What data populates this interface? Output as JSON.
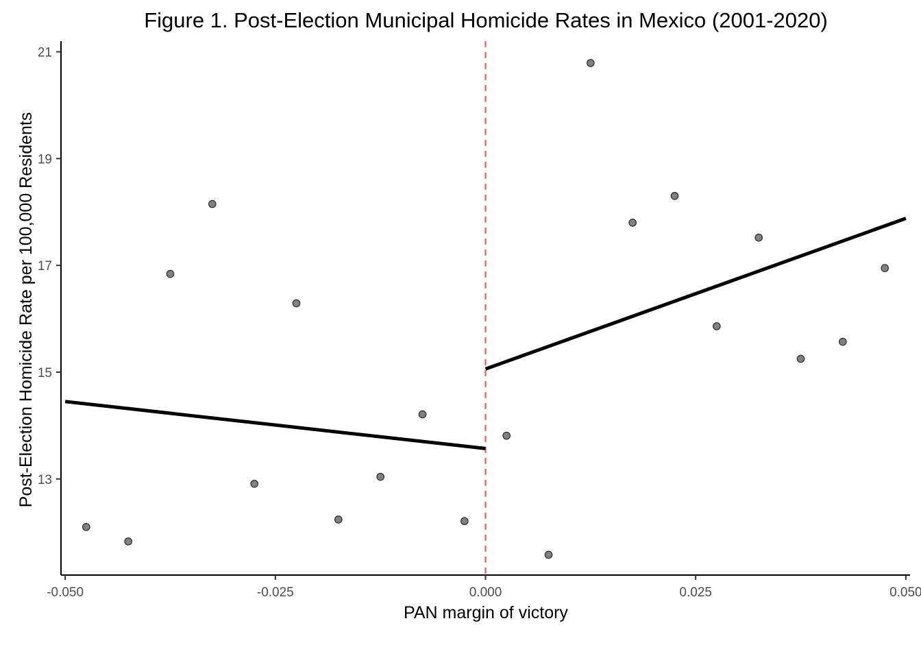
{
  "chart_data": {
    "type": "scatter",
    "title": "Figure 1. Post-Election Municipal Homicide Rates in Mexico (2001-2020)",
    "xlabel": "PAN margin of victory",
    "ylabel": "Post-Election Homicide Rate per 100,000 Residents",
    "xlim": [
      -0.0505,
      0.0505
    ],
    "ylim": [
      11.2,
      21.2
    ],
    "x_ticks": [
      -0.05,
      -0.025,
      0.0,
      0.025,
      0.05
    ],
    "x_tick_labels": [
      "-0.050",
      "-0.025",
      "0.000",
      "0.025",
      "0.050"
    ],
    "y_ticks": [
      13,
      15,
      17,
      19,
      21
    ],
    "y_tick_labels": [
      "13",
      "15",
      "17",
      "19",
      "21"
    ],
    "grid": false,
    "cutoff": {
      "x": 0.0,
      "color": "#f05a5a",
      "style": "dashed"
    },
    "points": [
      {
        "x": -0.0475,
        "y": 12.1
      },
      {
        "x": -0.0425,
        "y": 11.83
      },
      {
        "x": -0.0375,
        "y": 16.84
      },
      {
        "x": -0.0325,
        "y": 18.15
      },
      {
        "x": -0.0275,
        "y": 12.91
      },
      {
        "x": -0.0225,
        "y": 16.29
      },
      {
        "x": -0.0175,
        "y": 12.24
      },
      {
        "x": -0.0125,
        "y": 13.04
      },
      {
        "x": -0.0075,
        "y": 14.21
      },
      {
        "x": -0.0025,
        "y": 12.21
      },
      {
        "x": 0.0025,
        "y": 13.81
      },
      {
        "x": 0.0075,
        "y": 11.58
      },
      {
        "x": 0.0125,
        "y": 20.79
      },
      {
        "x": 0.0175,
        "y": 17.8
      },
      {
        "x": 0.0225,
        "y": 18.3
      },
      {
        "x": 0.0275,
        "y": 15.86
      },
      {
        "x": 0.0325,
        "y": 17.52
      },
      {
        "x": 0.0375,
        "y": 15.25
      },
      {
        "x": 0.0425,
        "y": 15.57
      },
      {
        "x": 0.0475,
        "y": 16.95
      }
    ],
    "fit_lines": [
      {
        "x": [
          -0.05,
          0.0
        ],
        "y": [
          14.45,
          13.57
        ]
      },
      {
        "x": [
          0.0,
          0.05
        ],
        "y": [
          15.06,
          17.88
        ]
      }
    ],
    "colors": {
      "points": "#7a7a7a",
      "fit": "#000000",
      "cutoff": "#f05a5a"
    }
  }
}
